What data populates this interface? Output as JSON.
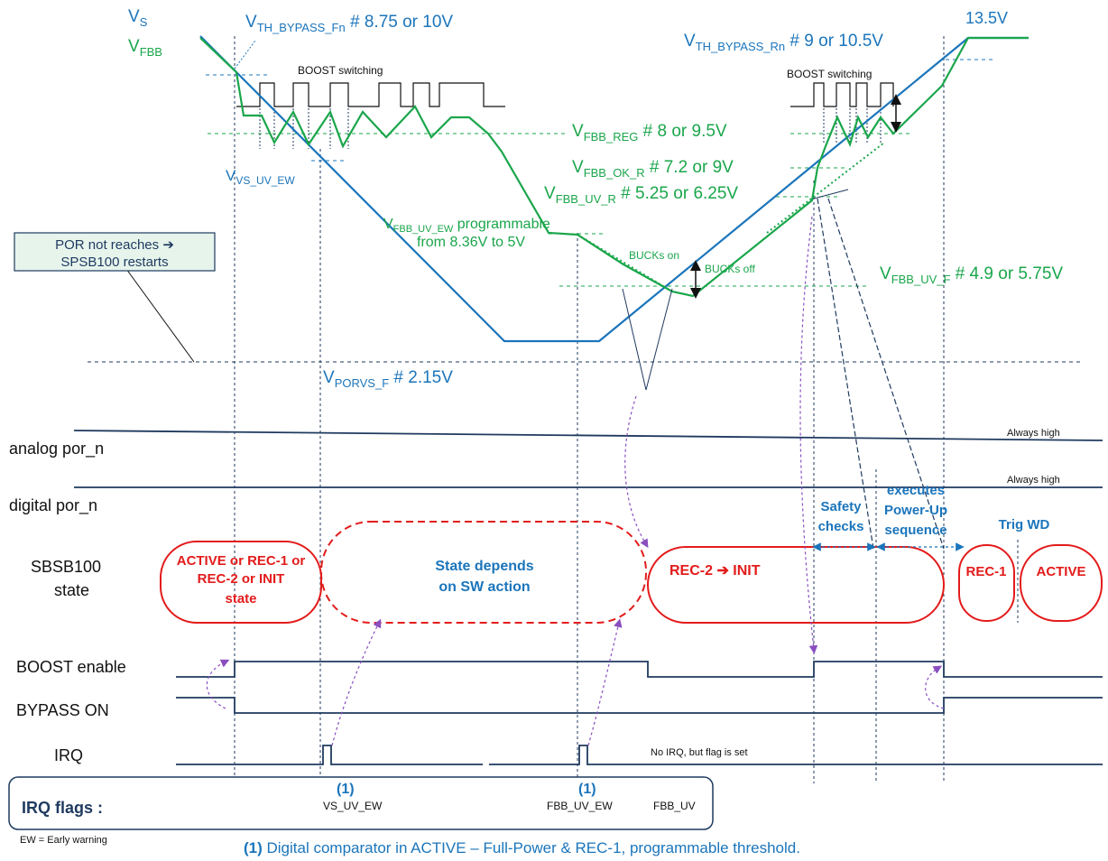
{
  "top_labels": {
    "vs": "V",
    "vs_sub": "S",
    "vfbb": "V",
    "vfbb_sub": "FBB",
    "v135": "13.5V"
  },
  "thresholds": {
    "th_bypass_fn": {
      "main": "V",
      "sub": "TH_BYPASS_Fn",
      "val": " # 8.75 or 10V"
    },
    "th_bypass_rn": {
      "main": "V",
      "sub": "TH_BYPASS_Rn",
      "val": " # 9 or 10.5V"
    },
    "fbb_reg": {
      "main": "V",
      "sub": "FBB_REG",
      "val": " # 8 or 9.5V"
    },
    "fbb_ok_r": {
      "main": "V",
      "sub": "FBB_OK_R",
      "val": " # 7.2 or 9V"
    },
    "fbb_uv_r": {
      "main": "V",
      "sub": "FBB_UV_R",
      "val": " # 5.25 or 6.25V"
    },
    "fbb_uv_ew": {
      "main": "V",
      "sub": "FBB_UV_EW",
      "val": " programmable",
      "line2": "from 8.36V to 5V"
    },
    "fbb_uv_f": {
      "main": "V",
      "sub": "FBB_UV_F",
      "val": " # 4.9 or 5.75V"
    },
    "vs_uv_ew": {
      "main": "V",
      "sub": "VS_UV_EW"
    },
    "porvs_f": {
      "main": "V",
      "sub": "PORVS_F",
      "val": " # 2.15V"
    }
  },
  "annotations": {
    "boost_switching": "BOOST switching",
    "bucks_on": "BUCKs on",
    "bucks_off": "BUCKs off",
    "always_high": "Always high",
    "no_irq": "No IRQ, but flag is set",
    "safety_checks": [
      "Safety",
      "checks"
    ],
    "power_up": [
      "executes",
      "Power-Up",
      "sequence"
    ],
    "trig_wd": "Trig WD",
    "ew_note": "EW = Early warning"
  },
  "por_box": {
    "line1": "POR not reaches ➔",
    "line2": "SPSB100 restarts"
  },
  "signals": {
    "analog_por": "analog por_n",
    "digital_por": "digital por_n",
    "state_line1": "SBSB100",
    "state_line2": "state",
    "boost_enable": "BOOST enable",
    "bypass_on": "BYPASS ON",
    "irq": "IRQ"
  },
  "states": {
    "active_rec": [
      "ACTIVE or REC-1 or",
      "REC-2 or INIT",
      "state"
    ],
    "sw_action": [
      "State depends",
      "on SW action"
    ],
    "rec2_init": "REC-2 ➔ INIT",
    "rec1": "REC-1",
    "active": "ACTIVE"
  },
  "irq_flags": {
    "title": "IRQ flags :",
    "marker": "(1)",
    "flag1": "VS_UV_EW",
    "flag2": "FBB_UV_EW",
    "flag3": "FBB_UV"
  },
  "footnote": {
    "marker": "(1)",
    "text": " Digital comparator in ACTIVE  – Full-Power & REC-1, programmable threshold."
  },
  "colors": {
    "vs_line": "#1b75bb",
    "vfbb_line": "#1aa64b",
    "state_red": "#e31b1b",
    "signal_dark": "#1f3a5f",
    "callout_purple": "#8a4fbf"
  }
}
